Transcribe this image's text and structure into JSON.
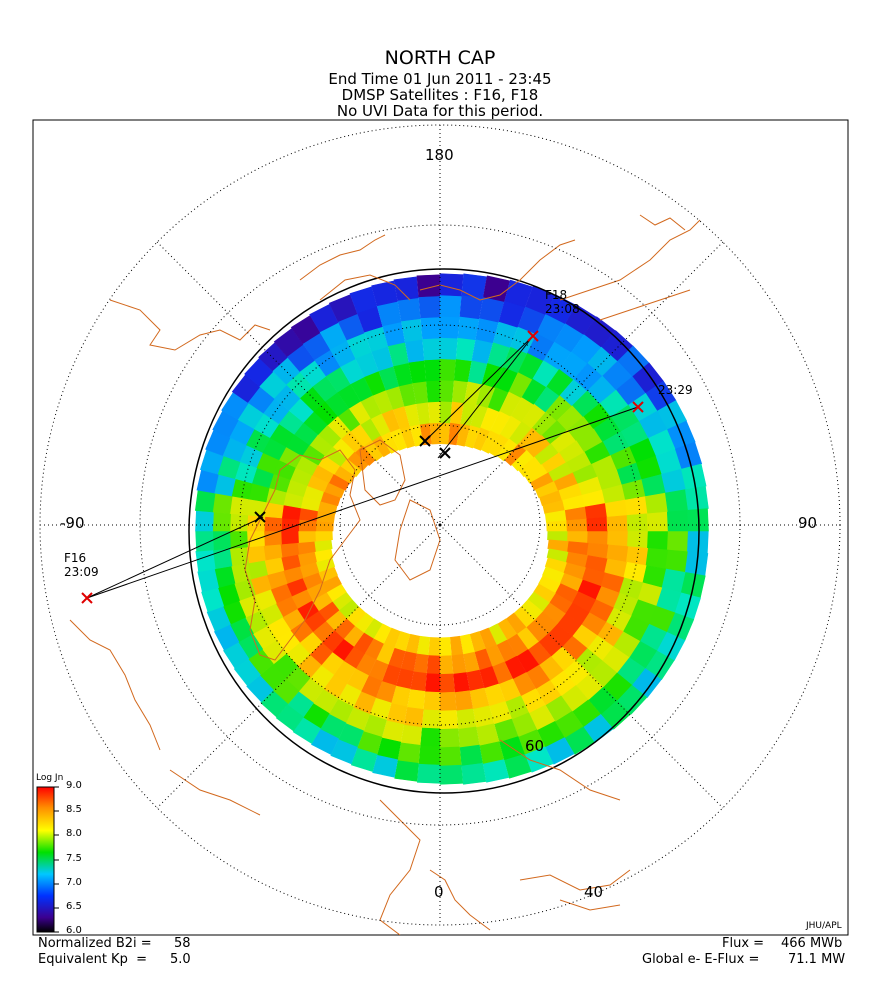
{
  "header": {
    "title": "NORTH CAP",
    "line1": "End Time 01 Jun 2011 - 23:45",
    "line2": "DMSP Satellites : F16, F18",
    "line3": "No UVI Data for this period."
  },
  "map": {
    "lon_labels": {
      "top": "180",
      "left": "-90",
      "right": "90",
      "bottom": "0"
    },
    "lat_labels": [
      "60",
      "40"
    ],
    "credit": "JHU/APL",
    "passes": [
      {
        "name": "F16",
        "time": "23:09"
      },
      {
        "name": "F18",
        "time": "23:08"
      },
      {
        "name": "",
        "time": "23:29"
      }
    ],
    "colors": {
      "coastline": "#d2691e",
      "marker": "#e00000",
      "grid": "#000000"
    }
  },
  "legend": {
    "title": "Log Jn",
    "ticks": [
      "9.0",
      "8.5",
      "8.0",
      "7.5",
      "7.0",
      "6.5",
      "6.0"
    ],
    "stops": [
      "#ff0000",
      "#ff8c00",
      "#ffff00",
      "#00e000",
      "#00c8ff",
      "#0032ff",
      "#3c0090",
      "#000000"
    ]
  },
  "footer": {
    "b2i_label": "Normalized B2i =",
    "b2i_value": "58",
    "kp_label": "Equivalent Kp  =",
    "kp_value": "5.0",
    "flux_label": "Flux =",
    "flux_value": "466 MWb",
    "eflux_label": "Global e- E-Flux =",
    "eflux_value": "71.1 MW"
  }
}
